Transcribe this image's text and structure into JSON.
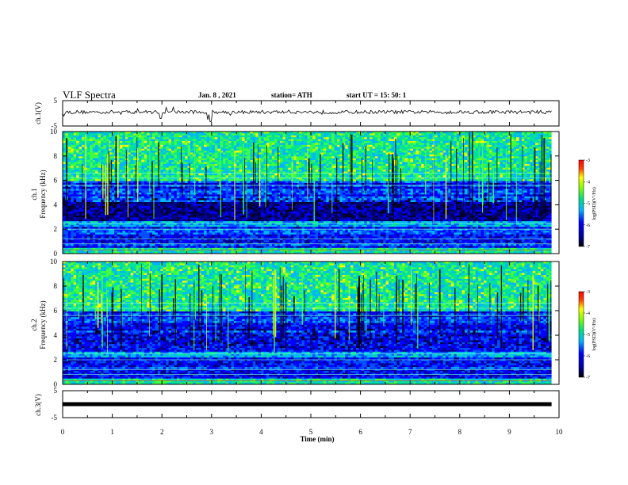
{
  "header": {
    "title": "VLF Spectra",
    "date": "Jan. 8 , 2021",
    "station": "station= ATH",
    "start": "start UT =  15: 50: 1"
  },
  "chart_data": [
    {
      "type": "line",
      "name": "ch1-waveform",
      "ylabel": "ch.1(V)",
      "ylim": [
        -5,
        5
      ],
      "yticks": [
        "5",
        "-5"
      ],
      "xlim": [
        0,
        10
      ],
      "data_extent_min": 9.85,
      "series": [
        {
          "values": [
            0.5
          ]
        }
      ]
    },
    {
      "type": "heatmap",
      "name": "ch1-spectrogram",
      "ylabel": "Frequency (kHz)",
      "ylabel_prefix": "ch.1",
      "ylim": [
        0,
        10
      ],
      "yticks": [
        "0",
        "2",
        "4",
        "6",
        "8",
        "10"
      ],
      "xlim": [
        0,
        10
      ],
      "colorbar": {
        "label": "log(PSD)(V²/Hz)",
        "ticks": [
          "-3",
          "-4",
          "-5",
          "-6",
          "-7"
        ],
        "range": [
          -7,
          -3
        ]
      }
    },
    {
      "type": "heatmap",
      "name": "ch2-spectrogram",
      "ylabel": "Frequency (kHz)",
      "ylabel_prefix": "ch.2",
      "ylim": [
        0,
        10
      ],
      "yticks": [
        "0",
        "2",
        "4",
        "6",
        "8",
        "10"
      ],
      "xlim": [
        0,
        10
      ],
      "colorbar": {
        "label": "log(PSD)(V²/Hz)",
        "ticks": [
          "-3",
          "-4",
          "-5",
          "-6",
          "-7"
        ],
        "range": [
          -7,
          -3
        ]
      }
    },
    {
      "type": "line",
      "name": "ch3-waveform",
      "ylabel": "ch.3(V)",
      "ylim": [
        -5,
        5
      ],
      "yticks": [
        "5",
        "-5"
      ],
      "xlim": [
        0,
        10
      ],
      "series": [
        {
          "values": [
            0
          ]
        }
      ]
    }
  ],
  "x_axis": {
    "label": "Time (min)",
    "ticks": [
      "0",
      "1",
      "2",
      "3",
      "4",
      "5",
      "6",
      "7",
      "8",
      "9",
      "10"
    ]
  }
}
